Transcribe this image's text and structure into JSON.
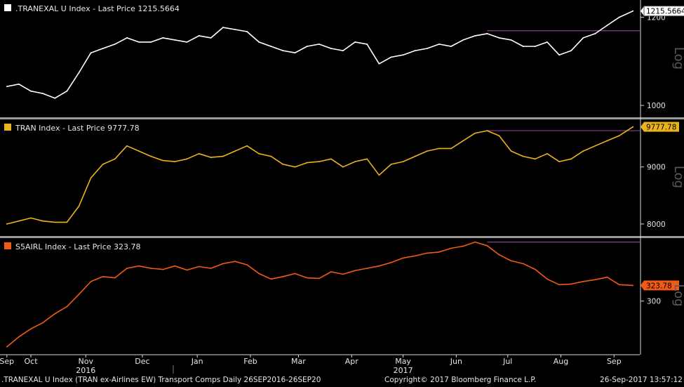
{
  "footer": {
    "description": ".TRANEXAL U Index (TRAN ex-Airlines EW) Transport Comps  Daily 26SEP2016-26SEP20",
    "copyright": "Copyright© 2017 Bloomberg Finance L.P.",
    "timestamp": "26-Sep-2017 13:57:12"
  },
  "colors": {
    "background": "#000000",
    "separator": "#9a9a9a",
    "reference_line": "#8e3c8c",
    "axis": "#d8d8d8",
    "log_label": "#5a5a5a"
  },
  "chart_data": [
    {
      "type": "line",
      "legend": ".TRANEXAL U Index - Last Price 1215.5664",
      "series": [
        {
          "name": ".TRANEXAL U Index",
          "color": "#ffffff",
          "x": [
            "2016-09-26",
            "2016-10-03",
            "2016-10-10",
            "2016-10-17",
            "2016-10-24",
            "2016-10-31",
            "2016-11-07",
            "2016-11-14",
            "2016-11-21",
            "2016-11-28",
            "2016-12-05",
            "2016-12-12",
            "2016-12-19",
            "2016-12-26",
            "2017-01-02",
            "2017-01-09",
            "2017-01-16",
            "2017-01-23",
            "2017-01-30",
            "2017-02-06",
            "2017-02-13",
            "2017-02-20",
            "2017-02-27",
            "2017-03-06",
            "2017-03-13",
            "2017-03-20",
            "2017-03-27",
            "2017-04-03",
            "2017-04-10",
            "2017-04-17",
            "2017-04-24",
            "2017-05-01",
            "2017-05-08",
            "2017-05-15",
            "2017-05-22",
            "2017-05-29",
            "2017-06-05",
            "2017-06-12",
            "2017-06-19",
            "2017-06-26",
            "2017-07-03",
            "2017-07-10",
            "2017-07-17",
            "2017-07-24",
            "2017-07-31",
            "2017-08-07",
            "2017-08-14",
            "2017-08-21",
            "2017-08-28",
            "2017-09-04",
            "2017-09-11",
            "2017-09-18",
            "2017-09-26"
          ],
          "values": [
            1040,
            1045,
            1030,
            1025,
            1015,
            1030,
            1070,
            1115,
            1125,
            1135,
            1150,
            1140,
            1140,
            1150,
            1145,
            1140,
            1155,
            1150,
            1175,
            1170,
            1165,
            1140,
            1130,
            1120,
            1115,
            1130,
            1135,
            1125,
            1120,
            1140,
            1135,
            1090,
            1105,
            1110,
            1120,
            1125,
            1135,
            1130,
            1145,
            1155,
            1160,
            1150,
            1145,
            1130,
            1130,
            1140,
            1110,
            1120,
            1150,
            1160,
            1180,
            1200,
            1215.5664
          ]
        }
      ],
      "y_axis": {
        "scale": "log",
        "ticks": [
          1000,
          1200
        ],
        "range": [
          980,
          1240
        ],
        "label": "Log",
        "last_value_label": "1215.5664"
      },
      "reference_level": 1167
    },
    {
      "type": "line",
      "legend": "TRAN Index - Last Price 9777.78",
      "series": [
        {
          "name": "TRAN Index",
          "color": "#e8b31f",
          "x": [
            "2016-09-26",
            "2016-10-03",
            "2016-10-10",
            "2016-10-17",
            "2016-10-24",
            "2016-10-31",
            "2016-11-07",
            "2016-11-14",
            "2016-11-21",
            "2016-11-28",
            "2016-12-05",
            "2016-12-12",
            "2016-12-19",
            "2016-12-26",
            "2017-01-02",
            "2017-01-09",
            "2017-01-16",
            "2017-01-23",
            "2017-01-30",
            "2017-02-06",
            "2017-02-13",
            "2017-02-20",
            "2017-02-27",
            "2017-03-06",
            "2017-03-13",
            "2017-03-20",
            "2017-03-27",
            "2017-04-03",
            "2017-04-10",
            "2017-04-17",
            "2017-04-24",
            "2017-05-01",
            "2017-05-08",
            "2017-05-15",
            "2017-05-22",
            "2017-05-29",
            "2017-06-05",
            "2017-06-12",
            "2017-06-19",
            "2017-06-26",
            "2017-07-03",
            "2017-07-10",
            "2017-07-17",
            "2017-07-24",
            "2017-07-31",
            "2017-08-07",
            "2017-08-14",
            "2017-08-21",
            "2017-08-28",
            "2017-09-04",
            "2017-09-11",
            "2017-09-18",
            "2017-09-26"
          ],
          "values": [
            8000,
            8050,
            8100,
            8050,
            8030,
            8030,
            8300,
            8800,
            9050,
            9150,
            9400,
            9300,
            9200,
            9120,
            9100,
            9150,
            9250,
            9180,
            9200,
            9300,
            9400,
            9250,
            9200,
            9050,
            9000,
            9080,
            9100,
            9150,
            9000,
            9100,
            9150,
            8850,
            9050,
            9100,
            9200,
            9300,
            9350,
            9350,
            9500,
            9650,
            9700,
            9600,
            9300,
            9200,
            9150,
            9250,
            9100,
            9150,
            9300,
            9400,
            9500,
            9600,
            9777.78
          ]
        }
      ],
      "y_axis": {
        "scale": "log",
        "ticks": [
          8000,
          9000
        ],
        "range": [
          7850,
          9900
        ],
        "label": "Log",
        "last_value_label": "9777.78"
      },
      "reference_level": 9700
    },
    {
      "type": "line",
      "legend": "S5AIRL Index - Last Price 323.78",
      "series": [
        {
          "name": "S5AIRL Index",
          "color": "#f05a14",
          "x": [
            "2016-09-26",
            "2016-10-03",
            "2016-10-10",
            "2016-10-17",
            "2016-10-24",
            "2016-10-31",
            "2016-11-07",
            "2016-11-14",
            "2016-11-21",
            "2016-11-28",
            "2016-12-05",
            "2016-12-12",
            "2016-12-19",
            "2016-12-26",
            "2017-01-02",
            "2017-01-09",
            "2017-01-16",
            "2017-01-23",
            "2017-01-30",
            "2017-02-06",
            "2017-02-13",
            "2017-02-20",
            "2017-02-27",
            "2017-03-06",
            "2017-03-13",
            "2017-03-20",
            "2017-03-27",
            "2017-04-03",
            "2017-04-10",
            "2017-04-17",
            "2017-04-24",
            "2017-05-01",
            "2017-05-08",
            "2017-05-15",
            "2017-05-22",
            "2017-05-29",
            "2017-06-05",
            "2017-06-12",
            "2017-06-19",
            "2017-06-26",
            "2017-07-03",
            "2017-07-10",
            "2017-07-17",
            "2017-07-24",
            "2017-07-31",
            "2017-08-07",
            "2017-08-14",
            "2017-08-21",
            "2017-08-28",
            "2017-09-04",
            "2017-09-11",
            "2017-09-18",
            "2017-09-26"
          ],
          "values": [
            240,
            252,
            262,
            270,
            282,
            292,
            310,
            330,
            338,
            336,
            352,
            356,
            352,
            350,
            356,
            349,
            355,
            352,
            360,
            364,
            358,
            343,
            334,
            338,
            343,
            336,
            335,
            346,
            342,
            348,
            352,
            356,
            362,
            370,
            374,
            379,
            381,
            388,
            392,
            400,
            393,
            376,
            365,
            360,
            350,
            334,
            325,
            326,
            330,
            333,
            337,
            325,
            323.78
          ]
        }
      ],
      "y_axis": {
        "scale": "log",
        "ticks": [
          300
        ],
        "range": [
          235,
          405
        ],
        "label": "Log",
        "last_value_label": "323.78"
      },
      "reference_level": 400
    }
  ],
  "x_axis": {
    "months": [
      {
        "label": "Sep",
        "date": "2016-09-26"
      },
      {
        "label": "Oct",
        "date": "2016-10-10"
      },
      {
        "label": "Nov",
        "date": "2016-11-11"
      },
      {
        "label": "Dec",
        "date": "2016-12-14"
      },
      {
        "label": "Jan",
        "date": "2017-01-15"
      },
      {
        "label": "Feb",
        "date": "2017-02-15"
      },
      {
        "label": "Mar",
        "date": "2017-03-15"
      },
      {
        "label": "Apr",
        "date": "2017-04-15"
      },
      {
        "label": "May",
        "date": "2017-05-15"
      },
      {
        "label": "Jun",
        "date": "2017-06-15"
      },
      {
        "label": "Jul",
        "date": "2017-07-15"
      },
      {
        "label": "Aug",
        "date": "2017-08-15"
      },
      {
        "label": "Sep",
        "date": "2017-09-15"
      }
    ],
    "years": [
      {
        "label": "2016",
        "date": "2016-11-11"
      },
      {
        "label": "2017",
        "date": "2017-05-15"
      }
    ]
  }
}
